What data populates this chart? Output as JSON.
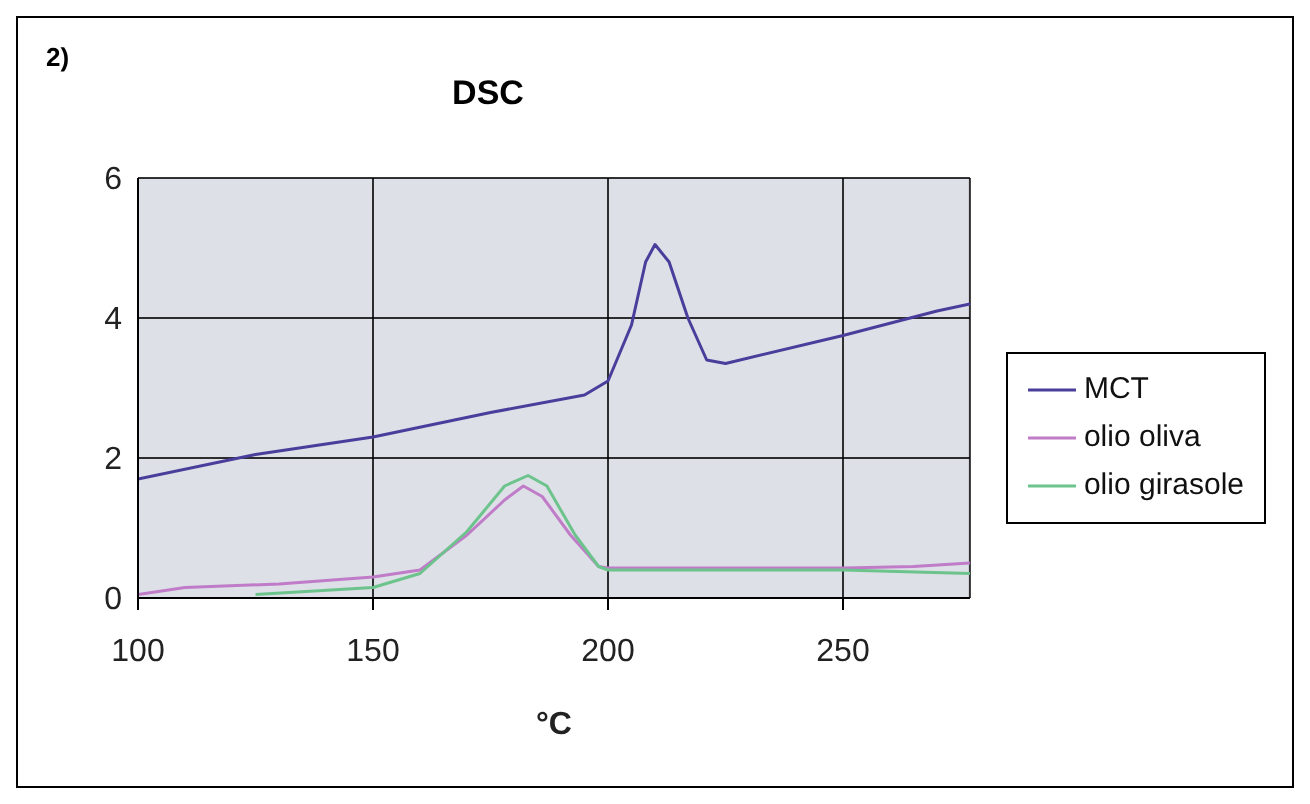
{
  "chart_data": {
    "type": "line",
    "title": "DSC",
    "xlabel": "°C",
    "annotations": [
      "2)"
    ],
    "xlim": [
      100,
      277
    ],
    "xticks": [
      100,
      150,
      200,
      250
    ],
    "ylim": [
      0,
      6
    ],
    "yticks": [
      0,
      2,
      4,
      6
    ],
    "grid": true,
    "legend": "right",
    "marker": "none",
    "line_style": "solid",
    "series": [
      {
        "name": "MCT",
        "color": "#4a3e9c",
        "x": [
          100,
          125,
          150,
          175,
          195,
          200,
          205,
          208,
          210,
          213,
          217,
          221,
          225,
          250,
          270,
          277
        ],
        "values": [
          1.7,
          2.05,
          2.3,
          2.65,
          2.9,
          3.1,
          3.9,
          4.8,
          5.05,
          4.8,
          4.0,
          3.4,
          3.35,
          3.75,
          4.1,
          4.2
        ]
      },
      {
        "name": "olio oliva",
        "color": "#c07cc8",
        "x": [
          100,
          110,
          130,
          150,
          160,
          170,
          178,
          182,
          186,
          192,
          198,
          200,
          250,
          265,
          277
        ],
        "values": [
          0.05,
          0.15,
          0.2,
          0.3,
          0.4,
          0.9,
          1.4,
          1.6,
          1.45,
          0.9,
          0.45,
          0.43,
          0.43,
          0.45,
          0.5
        ]
      },
      {
        "name": "olio girasole",
        "color": "#6cc48c",
        "x": [
          125,
          150,
          160,
          170,
          178,
          183,
          187,
          193,
          198,
          200,
          250,
          277
        ],
        "values": [
          0.05,
          0.15,
          0.35,
          0.95,
          1.6,
          1.75,
          1.6,
          0.9,
          0.45,
          0.4,
          0.4,
          0.35
        ]
      }
    ]
  }
}
